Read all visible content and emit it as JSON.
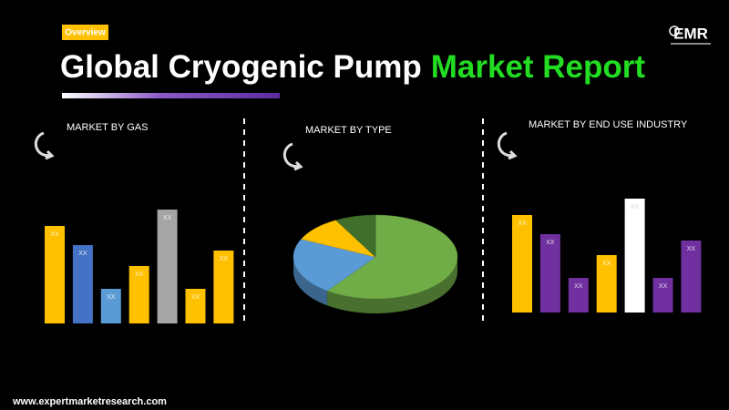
{
  "header": {
    "tag": "Overview",
    "title_white": "Global Cryogenic Pump",
    "title_green": "Market Report",
    "logo": "EMR"
  },
  "chart_data": [
    {
      "type": "bar",
      "title": "MARKET BY GAS",
      "values": [
        107,
        86,
        38,
        63,
        125,
        38,
        80
      ],
      "value_labels": [
        "XX",
        "XX",
        "XX",
        "XX",
        "XX",
        "XX",
        "XX"
      ],
      "colors": [
        "#ffc000",
        "#4472c4",
        "#5b9bd5",
        "#ffc000",
        "#a5a5a5",
        "#ffc000",
        "#ffc000"
      ],
      "ylim": [
        0,
        140
      ]
    },
    {
      "type": "pie",
      "title": "MARKET BY  TYPE",
      "values": [
        60,
        22,
        10,
        8
      ],
      "colors": [
        "#70ad47",
        "#5b9bd5",
        "#ffc000",
        "#3f6f2a"
      ]
    },
    {
      "type": "bar",
      "title": "MARKET BY  END USE INDUSTRY",
      "values": [
        107,
        86,
        38,
        63,
        125,
        38,
        79
      ],
      "value_labels": [
        "XX",
        "XX",
        "XX",
        "XX",
        "XX",
        "XX",
        "XX"
      ],
      "colors": [
        "#ffc000",
        "#7030a0",
        "#7030a0",
        "#ffc000",
        "#ffffff",
        "#7030a0",
        "#7030a0"
      ],
      "ylim": [
        0,
        140
      ]
    }
  ],
  "footer": "www.expertmarketresearch.com"
}
